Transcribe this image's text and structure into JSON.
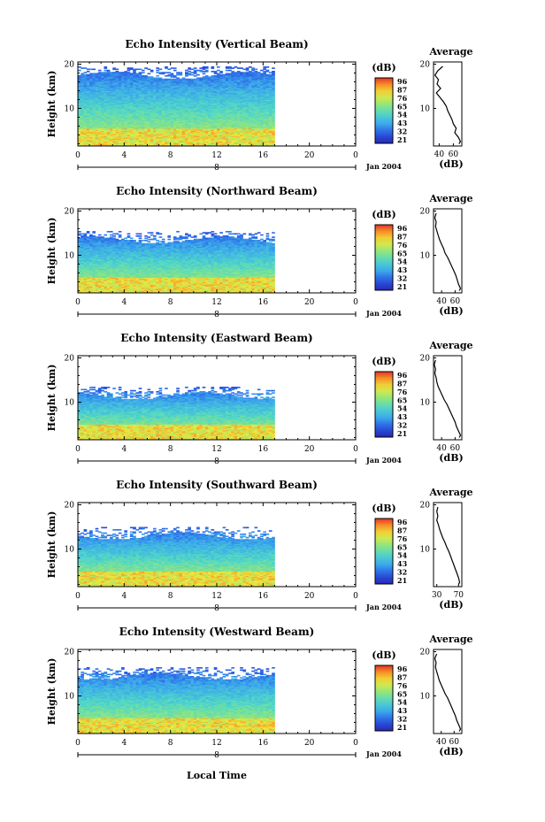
{
  "figure": {
    "xlabel": "Local Time",
    "date_label": "Jan 2004",
    "average_title": "Average",
    "average_xlabel": "(dB)",
    "colorbar_unit": "(dB)",
    "colorbar_ticks": [
      "96",
      "87",
      "76",
      "65",
      "54",
      "43",
      "32",
      "21"
    ]
  },
  "chart_data": [
    {
      "type": "heatmap",
      "title": "Echo Intensity (Vertical Beam)",
      "ylabel": "Height (km)",
      "x_ticks": [
        "0",
        "4",
        "8",
        "12",
        "16",
        "20",
        "0"
      ],
      "y_ticks": [
        "20",
        "10"
      ],
      "xlim": [
        0,
        24
      ],
      "ylim": [
        1.5,
        20.5
      ],
      "data_x_extent": [
        0,
        17
      ],
      "top_echo_km": 19.5,
      "strong_echo_top_km": 5.5,
      "date_marker": "8",
      "average_profile": {
        "x_ticks": [
          "40",
          "60"
        ],
        "xlim": [
          32,
          72
        ],
        "ylim": [
          1.5,
          20.5
        ],
        "points": [
          [
            45,
            19.5
          ],
          [
            38,
            18.5
          ],
          [
            34,
            17.5
          ],
          [
            39,
            16.5
          ],
          [
            37,
            15.5
          ],
          [
            42,
            14.5
          ],
          [
            36,
            13.5
          ],
          [
            41,
            12.5
          ],
          [
            46,
            11.5
          ],
          [
            50,
            10.5
          ],
          [
            52,
            9.5
          ],
          [
            55,
            8.5
          ],
          [
            58,
            7.5
          ],
          [
            60,
            6.5
          ],
          [
            64,
            5.5
          ],
          [
            62,
            4.5
          ],
          [
            67,
            3.5
          ],
          [
            70,
            2.5
          ],
          [
            68,
            2.0
          ]
        ]
      }
    },
    {
      "type": "heatmap",
      "title": "Echo Intensity (Northward Beam)",
      "ylabel": "Height (km)",
      "x_ticks": [
        "0",
        "4",
        "8",
        "12",
        "16",
        "20",
        "0"
      ],
      "y_ticks": [
        "20",
        "10"
      ],
      "xlim": [
        0,
        24
      ],
      "ylim": [
        1.5,
        20.5
      ],
      "data_x_extent": [
        0,
        17
      ],
      "top_echo_km": 15.5,
      "strong_echo_top_km": 5.0,
      "date_marker": "8",
      "average_profile": {
        "x_ticks": [
          "40",
          "60"
        ],
        "xlim": [
          28,
          70
        ],
        "ylim": [
          1.5,
          20.5
        ],
        "points": [
          [
            32,
            19.5
          ],
          [
            30,
            18.5
          ],
          [
            32,
            17.5
          ],
          [
            31,
            16.5
          ],
          [
            33,
            15.5
          ],
          [
            35,
            14.5
          ],
          [
            37,
            13.5
          ],
          [
            40,
            12.5
          ],
          [
            43,
            11.5
          ],
          [
            45,
            10.5
          ],
          [
            49,
            9.5
          ],
          [
            52,
            8.5
          ],
          [
            55,
            7.5
          ],
          [
            58,
            6.5
          ],
          [
            61,
            5.5
          ],
          [
            63,
            4.5
          ],
          [
            65,
            3.5
          ],
          [
            68,
            2.5
          ],
          [
            66,
            2.0
          ]
        ]
      }
    },
    {
      "type": "heatmap",
      "title": "Echo Intensity (Eastward Beam)",
      "ylabel": "Height (km)",
      "x_ticks": [
        "0",
        "4",
        "8",
        "12",
        "16",
        "20",
        "0"
      ],
      "y_ticks": [
        "20",
        "10"
      ],
      "xlim": [
        0,
        24
      ],
      "ylim": [
        1.5,
        20.5
      ],
      "data_x_extent": [
        0,
        17
      ],
      "top_echo_km": 13.5,
      "strong_echo_top_km": 5.0,
      "date_marker": "8",
      "average_profile": {
        "x_ticks": [
          "40",
          "60"
        ],
        "xlim": [
          28,
          70
        ],
        "ylim": [
          1.5,
          20.5
        ],
        "points": [
          [
            31,
            19.5
          ],
          [
            29,
            18.5
          ],
          [
            31,
            17.5
          ],
          [
            30,
            16.5
          ],
          [
            32,
            15.5
          ],
          [
            33,
            14.5
          ],
          [
            35,
            13.5
          ],
          [
            38,
            12.5
          ],
          [
            41,
            11.5
          ],
          [
            44,
            10.5
          ],
          [
            48,
            9.5
          ],
          [
            51,
            8.5
          ],
          [
            54,
            7.5
          ],
          [
            57,
            6.5
          ],
          [
            60,
            5.5
          ],
          [
            62,
            4.5
          ],
          [
            65,
            3.5
          ],
          [
            68,
            2.5
          ],
          [
            66,
            2.0
          ]
        ]
      }
    },
    {
      "type": "heatmap",
      "title": "Echo Intensity (Southward Beam)",
      "ylabel": "Height (km)",
      "x_ticks": [
        "0",
        "4",
        "8",
        "12",
        "16",
        "20",
        "0"
      ],
      "y_ticks": [
        "20",
        "10"
      ],
      "xlim": [
        0,
        24
      ],
      "ylim": [
        1.5,
        20.5
      ],
      "data_x_extent": [
        0,
        17
      ],
      "top_echo_km": 15.0,
      "strong_echo_top_km": 5.0,
      "date_marker": "8",
      "average_profile": {
        "x_ticks": [
          "30",
          "70"
        ],
        "xlim": [
          24,
          76
        ],
        "ylim": [
          1.5,
          20.5
        ],
        "points": [
          [
            32,
            19.5
          ],
          [
            30,
            18.5
          ],
          [
            32,
            17.5
          ],
          [
            30,
            16.5
          ],
          [
            33,
            15.5
          ],
          [
            35,
            14.5
          ],
          [
            38,
            13.5
          ],
          [
            41,
            12.5
          ],
          [
            45,
            11.5
          ],
          [
            48,
            10.5
          ],
          [
            52,
            9.5
          ],
          [
            55,
            8.5
          ],
          [
            58,
            7.5
          ],
          [
            61,
            6.5
          ],
          [
            64,
            5.5
          ],
          [
            67,
            4.5
          ],
          [
            70,
            3.5
          ],
          [
            72,
            2.5
          ],
          [
            70,
            2.0
          ]
        ]
      }
    },
    {
      "type": "heatmap",
      "title": "Echo Intensity (Westward Beam)",
      "ylabel": "Height (km)",
      "x_ticks": [
        "0",
        "4",
        "8",
        "12",
        "16",
        "20",
        "0"
      ],
      "y_ticks": [
        "20",
        "10"
      ],
      "xlim": [
        0,
        24
      ],
      "ylim": [
        1.5,
        20.5
      ],
      "data_x_extent": [
        0,
        17
      ],
      "top_echo_km": 16.5,
      "strong_echo_top_km": 5.0,
      "date_marker": "8",
      "average_profile": {
        "x_ticks": [
          "40",
          "60"
        ],
        "xlim": [
          28,
          72
        ],
        "ylim": [
          1.5,
          20.5
        ],
        "points": [
          [
            33,
            19.5
          ],
          [
            30,
            18.5
          ],
          [
            32,
            17.5
          ],
          [
            31,
            16.5
          ],
          [
            33,
            15.5
          ],
          [
            35,
            14.5
          ],
          [
            37,
            13.5
          ],
          [
            40,
            12.5
          ],
          [
            43,
            11.5
          ],
          [
            46,
            10.5
          ],
          [
            50,
            9.5
          ],
          [
            53,
            8.5
          ],
          [
            56,
            7.5
          ],
          [
            59,
            6.5
          ],
          [
            62,
            5.5
          ],
          [
            64,
            4.5
          ],
          [
            67,
            3.5
          ],
          [
            70,
            2.5
          ],
          [
            68,
            2.0
          ]
        ]
      }
    }
  ]
}
